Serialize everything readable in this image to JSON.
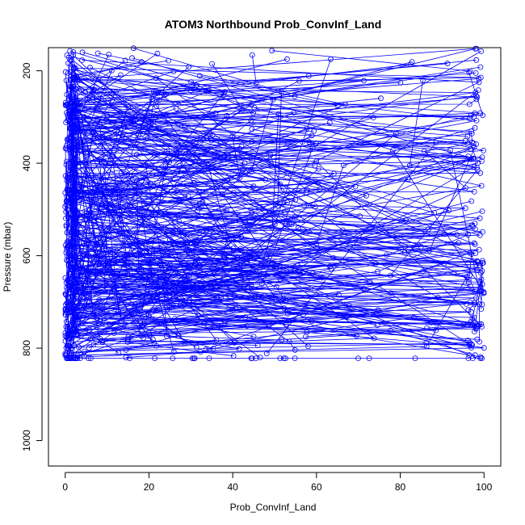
{
  "chart_data": {
    "type": "line",
    "title": "ATOM3 Northbound Prob_ConvInf_Land",
    "xlabel": "Prob_ConvInf_Land",
    "ylabel": "Pressure (mbar)",
    "xlim": [
      -4,
      104
    ],
    "ylim": [
      1055,
      150
    ],
    "y_reversed": true,
    "x_ticks": [
      0,
      20,
      40,
      60,
      80,
      100
    ],
    "y_ticks": [
      200,
      400,
      600,
      800,
      1000
    ],
    "marker": "open-circle",
    "grid": false,
    "legend": "none",
    "series_color": "#0000ff",
    "profile_count": 180,
    "pressure_range": [
      150,
      822
    ],
    "value_range": [
      0,
      100
    ]
  }
}
